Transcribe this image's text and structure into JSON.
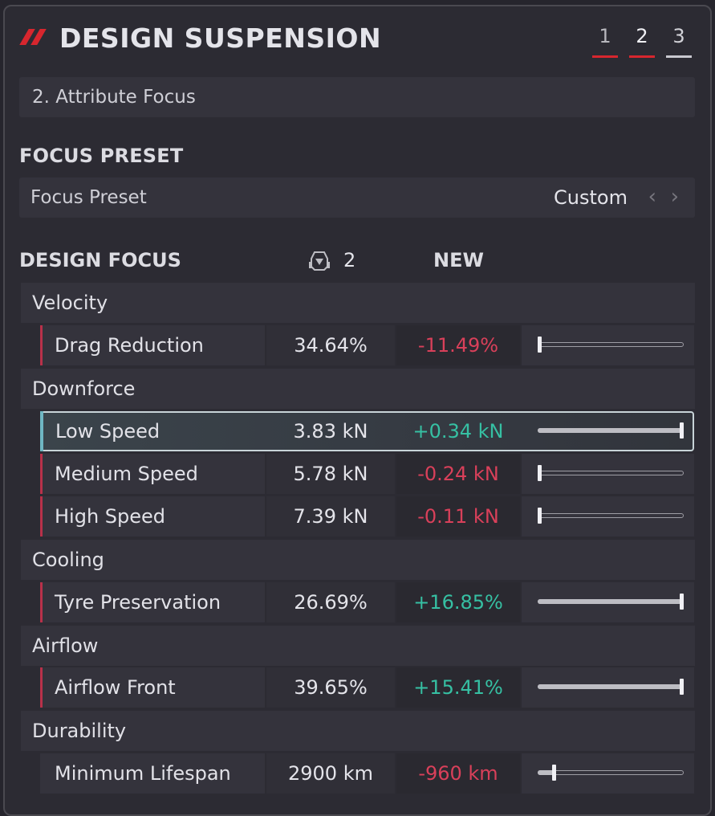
{
  "header": {
    "title": "DESIGN SUSPENSION",
    "steps": [
      "1",
      "2",
      "3"
    ],
    "active_step": "2",
    "accent_color": "#d7262e"
  },
  "subheader": "2. Attribute Focus",
  "focus_preset": {
    "section_label": "FOCUS PRESET",
    "row_label": "Focus Preset",
    "value": "Custom",
    "prev_icon": "chevron-left-icon",
    "next_icon": "chevron-right-icon"
  },
  "design_focus": {
    "section_label": "DESIGN FOCUS",
    "car_icon": "car-icon",
    "car_number": "2",
    "new_label": "NEW"
  },
  "categories": [
    {
      "name": "Velocity"
    },
    {
      "name": "Downforce"
    },
    {
      "name": "Cooling"
    },
    {
      "name": "Airflow"
    },
    {
      "name": "Durability"
    }
  ],
  "attributes": [
    {
      "name": "Drag Reduction",
      "current": "34.64%",
      "delta": "-11.49%",
      "trend": "negative",
      "slider_level": 0
    },
    {
      "name": "Low Speed",
      "current": "3.83 kN",
      "delta": "+0.34 kN",
      "trend": "positive",
      "slider_level": 1,
      "selected": true
    },
    {
      "name": "Medium Speed",
      "current": "5.78 kN",
      "delta": "-0.24 kN",
      "trend": "negative",
      "slider_level": 0
    },
    {
      "name": "High Speed",
      "current": "7.39 kN",
      "delta": "-0.11 kN",
      "trend": "negative",
      "slider_level": 0
    },
    {
      "name": "Tyre Preservation",
      "current": "26.69%",
      "delta": "+16.85%",
      "trend": "positive",
      "slider_level": 1
    },
    {
      "name": "Airflow Front",
      "current": "39.65%",
      "delta": "+15.41%",
      "trend": "positive",
      "slider_level": 1
    },
    {
      "name": "Minimum Lifespan",
      "current": "2900 km",
      "delta": "-960 km",
      "trend": "negative",
      "slider_level": 0.1
    }
  ],
  "colors": {
    "positive": "#36c0a3",
    "negative": "#d9405a",
    "row_marker": "#b8314a",
    "selection_marker": "#6fb7c3"
  }
}
